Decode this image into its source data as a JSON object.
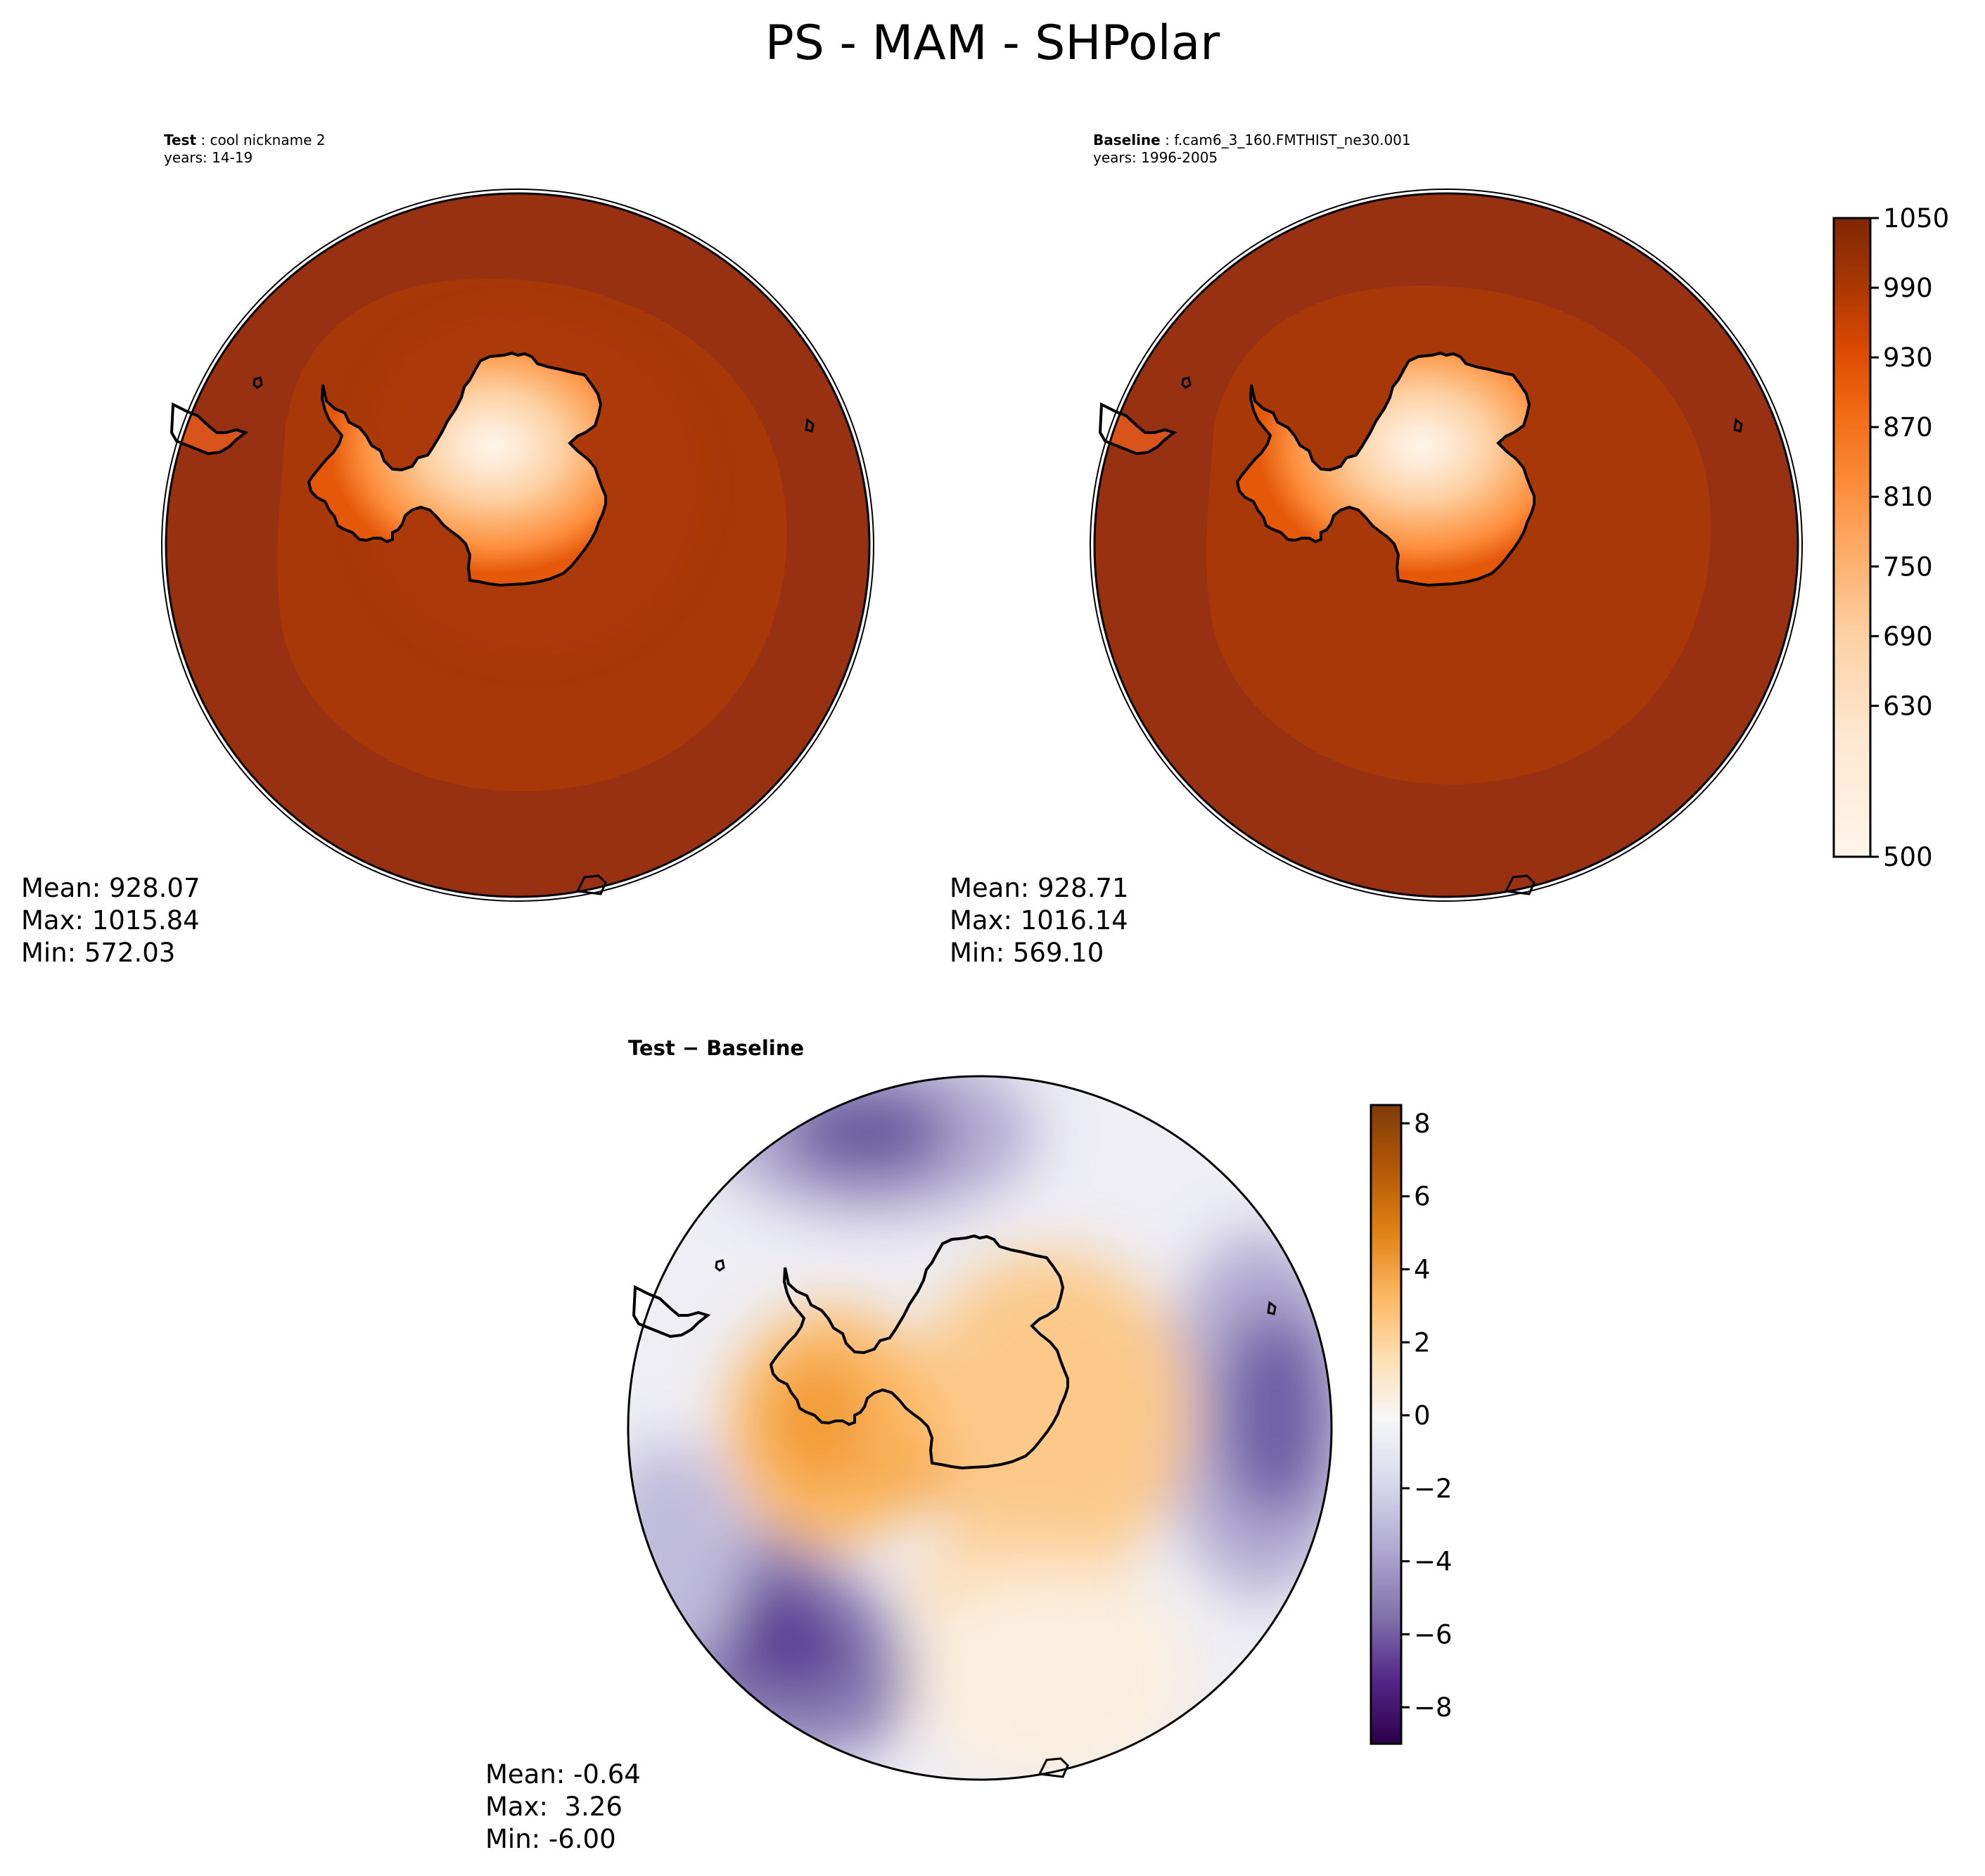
{
  "figure": {
    "title": "PS - MAM - SHPolar"
  },
  "colors": {
    "test_ocean": "#983111",
    "test_ring": "#a83808",
    "sequential_cmap": [
      "#fff5eb",
      "#fee6ce",
      "#fdd0a2",
      "#fdae6b",
      "#fd8d3c",
      "#f16913",
      "#d94801",
      "#a63603",
      "#7f2704"
    ],
    "diverging_cmap": [
      "#2d004b",
      "#542788",
      "#8073ac",
      "#b2abd2",
      "#d8daeb",
      "#f7f7f7",
      "#fee0b6",
      "#fdb863",
      "#e08214",
      "#b35806",
      "#7f3b08"
    ]
  },
  "chart_data": [
    {
      "type": "heatmap",
      "panel": "test",
      "projection": "south-polar-stereographic",
      "title_prefix": "Test",
      "case_name": "cool nickname 2",
      "years": "years: 14-19",
      "stats": {
        "mean": "Mean: 928.07",
        "max": "Max: 1015.84",
        "min": "Min: 572.03"
      },
      "range": [
        500,
        1050
      ]
    },
    {
      "type": "heatmap",
      "panel": "baseline",
      "projection": "south-polar-stereographic",
      "title_prefix": "Baseline",
      "case_name": "f.cam6_3_160.FMTHIST_ne30.001",
      "years": "years: 1996-2005",
      "stats": {
        "mean": "Mean: 928.71",
        "max": "Max: 1016.14",
        "min": "Min: 569.10"
      },
      "colorbar": {
        "range": [
          500,
          1050
        ],
        "ticks": [
          500,
          630,
          690,
          750,
          810,
          870,
          930,
          990,
          1050
        ],
        "tick_labels": [
          "500",
          "630",
          "690",
          "750",
          "810",
          "870",
          "930",
          "990",
          "1050"
        ]
      }
    },
    {
      "type": "heatmap",
      "panel": "difference",
      "projection": "south-polar-stereographic",
      "title": "Test − Baseline",
      "stats": {
        "mean": "Mean: -0.64",
        "max": "Max:  3.26",
        "min": "Min: -6.00"
      },
      "colorbar": {
        "range": [
          -9,
          8.5
        ],
        "ticks": [
          -8,
          -6,
          -4,
          -2,
          0,
          2,
          4,
          6,
          8
        ],
        "tick_labels": [
          "−8",
          "−6",
          "−4",
          "−2",
          "0",
          "2",
          "4",
          "6",
          "8"
        ]
      }
    }
  ]
}
